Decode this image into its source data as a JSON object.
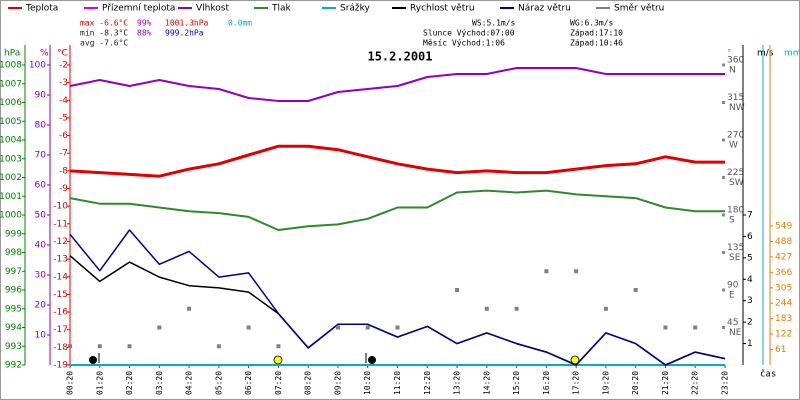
{
  "chart_data": {
    "type": "line",
    "title": "15.2.2001",
    "categories": [
      "00:20",
      "01:20",
      "02:20",
      "03:20",
      "04:20",
      "05:20",
      "06:20",
      "07:20",
      "08:20",
      "09:20",
      "10:20",
      "11:20",
      "12:20",
      "13:20",
      "14:20",
      "15:20",
      "16:20",
      "17:20",
      "19:20",
      "20:20",
      "21:20",
      "22:20",
      "23:20"
    ],
    "x_label": "čas",
    "axes": [
      {
        "label": "hPa",
        "color": "#008000",
        "lim": [
          992,
          1008
        ],
        "ticks": [
          1008,
          1007,
          1006,
          1005,
          1004,
          1003,
          1002,
          1001,
          1000,
          999,
          998,
          997,
          996,
          995,
          994,
          993,
          992
        ]
      },
      {
        "label": "%",
        "color": "#8000c0",
        "lim": [
          0,
          100
        ],
        "ticks": [
          100,
          90,
          80,
          70,
          60,
          50,
          40,
          30,
          20,
          10
        ]
      },
      {
        "label": "°C",
        "color": "#e00000",
        "lim": [
          -19,
          -2
        ],
        "ticks": [
          -2,
          -3,
          -4,
          -5,
          -6,
          -7,
          -8,
          -9,
          -10,
          -11,
          -12,
          -13,
          -14,
          -15,
          -16,
          -17,
          -18,
          -19
        ]
      },
      {
        "label": "°",
        "color": "#808080",
        "lim": [
          0,
          360
        ],
        "ticks": [
          360,
          315,
          270,
          225,
          180,
          135,
          90,
          45
        ],
        "compass": [
          "N",
          "NW",
          "W",
          "SW",
          "S",
          "SE",
          "E",
          "NE"
        ]
      },
      {
        "label": "m/s",
        "color": "#000000",
        "lim": [
          0,
          14
        ],
        "ticks": [
          1,
          2,
          3,
          4,
          5,
          6,
          7
        ]
      },
      {
        "label": "mm",
        "color": "#00b0c0",
        "lim": [
          0,
          1185
        ],
        "ticks": []
      },
      {
        "color": "#e08000",
        "lim": [
          0,
          1185
        ],
        "ticks": [
          61,
          122,
          183,
          244,
          305,
          366,
          427,
          488,
          549
        ]
      }
    ],
    "series": [
      {
        "name": "Teplota",
        "color": "#e00000",
        "axis": 2,
        "width": 3,
        "values": [
          -8.0,
          -8.1,
          -8.2,
          -8.3,
          -7.9,
          -7.6,
          -7.1,
          -6.6,
          -6.6,
          -6.8,
          -7.2,
          -7.6,
          -7.9,
          -8.1,
          -8.0,
          -8.1,
          -8.1,
          -7.9,
          -7.7,
          -7.6,
          -7.2,
          -7.5,
          -7.5
        ]
      },
      {
        "name": "Přízemní teplota",
        "color": "#e000e0",
        "axis": 2,
        "width": 1.5,
        "values": [
          null,
          null,
          null,
          null,
          null,
          null,
          null,
          null,
          null,
          null,
          null,
          null,
          null,
          null,
          null,
          null,
          null,
          null,
          null,
          null,
          null,
          null,
          null
        ]
      },
      {
        "name": "Vlhkost",
        "color": "#9000c0",
        "axis": 1,
        "width": 2,
        "values": [
          93,
          95,
          93,
          95,
          93,
          92,
          89,
          88,
          88,
          91,
          92,
          93,
          96,
          97,
          97,
          99,
          99,
          99,
          97,
          97,
          97,
          97,
          97
        ]
      },
      {
        "name": "Tlak",
        "color": "#308830",
        "axis": 0,
        "width": 2,
        "values": [
          1000.9,
          1000.6,
          1000.6,
          1000.4,
          1000.2,
          1000.1,
          999.9,
          999.2,
          999.4,
          999.5,
          999.8,
          1000.4,
          1000.4,
          1001.2,
          1001.3,
          1001.2,
          1001.3,
          1001.1,
          1001.0,
          1000.9,
          1000.4,
          1000.2,
          1000.2
        ]
      },
      {
        "name": "Srážky",
        "color": "#00b0c0",
        "axis": 5,
        "width": 2,
        "values": [
          0,
          0,
          0,
          0,
          0,
          0,
          0,
          0,
          0,
          0,
          0,
          0,
          0,
          0,
          0,
          0,
          0,
          0,
          0,
          0,
          0,
          0,
          0
        ]
      },
      {
        "name": "Rychlost větru",
        "color": "#000000",
        "axis": 4,
        "width": 1.5,
        "values": [
          5.1,
          3.9,
          4.8,
          4.1,
          3.7,
          3.6,
          3.4,
          2.4,
          0.8,
          1.9,
          1.9,
          1.3,
          1.8,
          1.0,
          1.5,
          1.0,
          0.6,
          0,
          1.5,
          1.0,
          0,
          0.6,
          0.3
        ]
      },
      {
        "name": "Náraz větru",
        "color": "#000090",
        "axis": 4,
        "width": 1.5,
        "values": [
          6.1,
          4.4,
          6.3,
          4.7,
          5.3,
          4.1,
          4.3,
          2.4,
          0.8,
          1.9,
          1.9,
          1.3,
          1.8,
          1.0,
          1.5,
          1.0,
          0.6,
          0,
          1.5,
          1.0,
          0,
          0.6,
          0.3
        ]
      },
      {
        "name": "Směr větru",
        "color": "#808080",
        "axis": 3,
        "marker": "square",
        "values": [
          22.5,
          22.5,
          22.5,
          45,
          67.5,
          22.5,
          45,
          22.5,
          null,
          45,
          45,
          45,
          null,
          90,
          67.5,
          67.5,
          112.5,
          112.5,
          67.5,
          90,
          45,
          45,
          null
        ]
      }
    ],
    "stats": {
      "max": [
        {
          "text": "max -6.6°C",
          "color": "#e00000"
        },
        {
          "text": "99%",
          "color": "#9000c0"
        },
        {
          "text": "1001.3hPa",
          "color": "#e00000"
        },
        {
          "text": "0.0mm",
          "color": "#00b0c0"
        }
      ],
      "min": [
        {
          "text": "min -8.3°C",
          "color": "#202020"
        },
        {
          "text": "88%",
          "color": "#9000c0"
        },
        {
          "text": "999.2hPa",
          "color": "#0000c0"
        }
      ],
      "avg": [
        {
          "text": "avg -7.6°C",
          "color": "#202020"
        }
      ]
    },
    "info": [
      "WS:5.1m/s",
      "WG:6.3m/s",
      "Slunce Východ:07:00",
      "Západ:17:10",
      "Měsíc  Východ:1:06",
      "Západ:10:46"
    ]
  }
}
